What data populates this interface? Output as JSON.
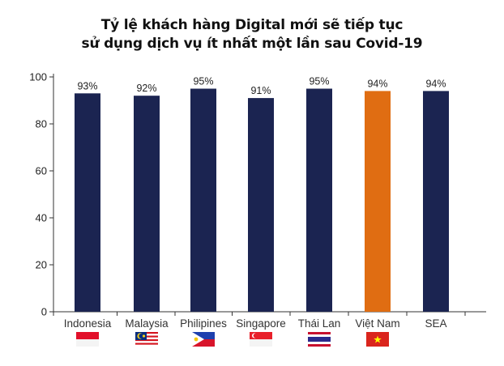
{
  "chart_data": {
    "type": "bar",
    "title_line1": "Tỷ lệ khách hàng Digital mới sẽ tiếp tục",
    "title_line2": "sử dụng dịch vụ ít nhất một lần sau Covid-19",
    "categories": [
      "Indonesia",
      "Malaysia",
      "Philipines",
      "Singapore",
      "Thái Lan",
      "Việt Nam",
      "SEA"
    ],
    "values": [
      93,
      92,
      95,
      91,
      95,
      94,
      94
    ],
    "data_labels": [
      "93%",
      "92%",
      "95%",
      "91%",
      "95%",
      "94%",
      "94%"
    ],
    "highlight": [
      false,
      false,
      false,
      false,
      false,
      true,
      false
    ],
    "yticks": [
      0,
      20,
      40,
      60,
      80,
      100
    ],
    "ylim": [
      0,
      100
    ],
    "xlabel": "",
    "ylabel": "",
    "grid": false,
    "flags": [
      "indonesia-flag",
      "malaysia-flag",
      "philippines-flag",
      "singapore-flag",
      "thailand-flag",
      "vietnam-flag",
      ""
    ],
    "colors": {
      "bar": "#1b2451",
      "highlight": "#e06d12",
      "axis": "#333333"
    }
  }
}
